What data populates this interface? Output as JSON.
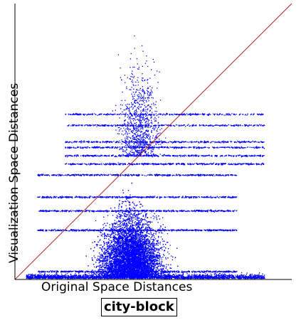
{
  "chart_data": {
    "type": "scatter",
    "title": "",
    "caption": "city-block",
    "xlabel": "Original Space Distances",
    "ylabel": "Visualization Space Distances",
    "xlim": [
      0,
      1
    ],
    "ylim": [
      0,
      1
    ],
    "reference_line": {
      "x": [
        0,
        1
      ],
      "y": [
        0,
        1
      ]
    },
    "grid": false,
    "colors": {
      "points": "#0000ff",
      "reference_line": "#b22222",
      "axes": "#000000"
    },
    "density_profile": {
      "x_range_dense": [
        0.05,
        0.88
      ],
      "x_peak": 0.42,
      "y_median": 0.2,
      "y_max": 0.93,
      "horizontal_bands_y": [
        0.03,
        0.18,
        0.25,
        0.3,
        0.38,
        0.42,
        0.45,
        0.48,
        0.5,
        0.56,
        0.6
      ]
    }
  }
}
